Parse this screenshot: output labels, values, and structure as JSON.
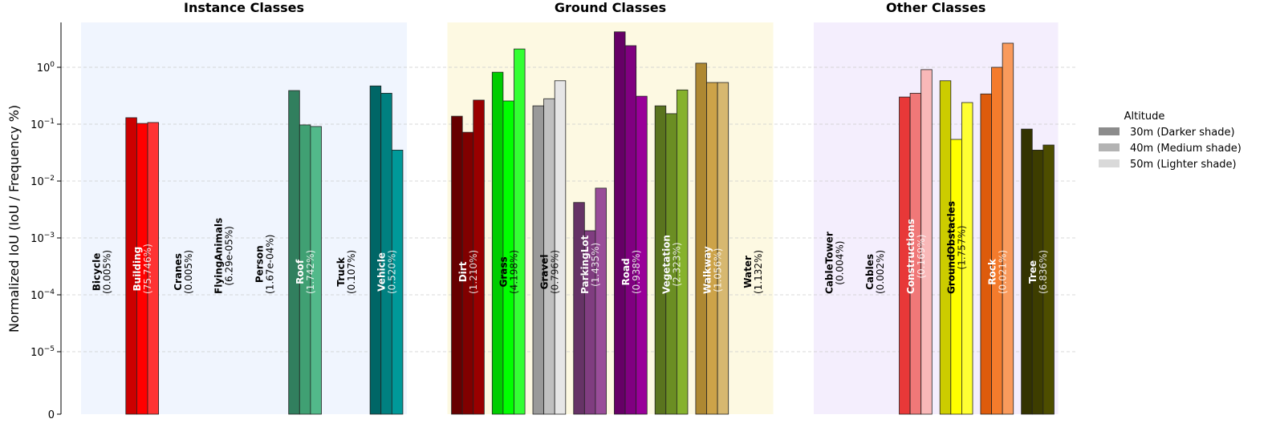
{
  "chart_data": {
    "type": "bar",
    "ylabel": "Normalized IoU (IoU / Frequency %)",
    "yscale": "symlog",
    "ylim": [
      0,
      6
    ],
    "yticks": [
      {
        "value": 0,
        "base": "0",
        "exp": ""
      },
      {
        "value": 1e-05,
        "base": "10",
        "exp": "−5"
      },
      {
        "value": 0.0001,
        "base": "10",
        "exp": "−4"
      },
      {
        "value": 0.001,
        "base": "10",
        "exp": "−3"
      },
      {
        "value": 0.01,
        "base": "10",
        "exp": "−2"
      },
      {
        "value": 0.1,
        "base": "10",
        "exp": "−1"
      },
      {
        "value": 1,
        "base": "10",
        "exp": "0"
      }
    ],
    "grid": true,
    "legend": {
      "title": "Altitude",
      "placement": "right",
      "entries": [
        {
          "label": "30m (Darker shade)",
          "color": "#8c8c8c"
        },
        {
          "label": "40m (Medium shade)",
          "color": "#b3b3b3"
        },
        {
          "label": "50m (Lighter shade)",
          "color": "#d9d9d9"
        }
      ]
    },
    "groups": [
      {
        "title": "Instance Classes",
        "background": "#f0f5fe",
        "classes": [
          {
            "name": "Bicycle",
            "freq": "(0.005%)",
            "values": [],
            "colors": []
          },
          {
            "name": "Building",
            "freq": "(75.746%)",
            "values": [
              0.13,
              0.103,
              0.107
            ],
            "colors": [
              "#cc0000",
              "#ff0000",
              "#ff3333"
            ]
          },
          {
            "name": "Cranes",
            "freq": "(0.005%)",
            "values": [],
            "colors": []
          },
          {
            "name": "FlyingAnimals",
            "freq": "(6.29e-05%)",
            "values": [],
            "colors": []
          },
          {
            "name": "Person",
            "freq": "(1.67e-04%)",
            "values": [],
            "colors": []
          },
          {
            "name": "Roof",
            "freq": "(1.742%)",
            "values": [
              0.39,
              0.097,
              0.091
            ],
            "colors": [
              "#317f5e",
              "#40a073",
              "#52b98a"
            ]
          },
          {
            "name": "Truck",
            "freq": "(0.107%)",
            "values": [],
            "colors": []
          },
          {
            "name": "Vehicle",
            "freq": "(0.520%)",
            "values": [
              0.47,
              0.35,
              0.035
            ],
            "colors": [
              "#006666",
              "#008080",
              "#009999"
            ]
          }
        ]
      },
      {
        "title": "Ground Classes",
        "background": "#fdf9e2",
        "classes": [
          {
            "name": "Dirt",
            "freq": "(1.210%)",
            "values": [
              0.138,
              0.072,
              0.265
            ],
            "colors": [
              "#660000",
              "#800000",
              "#990000"
            ]
          },
          {
            "name": "Grass",
            "freq": "(4.198%)",
            "values": [
              0.82,
              0.256,
              2.1
            ],
            "colors": [
              "#00cc00",
              "#00ff00",
              "#33ff33"
            ]
          },
          {
            "name": "Gravel",
            "freq": "(0.796%)",
            "values": [
              0.21,
              0.28,
              0.58
            ],
            "colors": [
              "#999999",
              "#c0c0c0",
              "#e6e6e6"
            ]
          },
          {
            "name": "ParkingLot",
            "freq": "(1.435%)",
            "values": [
              0.0042,
              0.00134,
              0.0075
            ],
            "colors": [
              "#663366",
              "#803d80",
              "#994d99"
            ]
          },
          {
            "name": "Road",
            "freq": "(0.938%)",
            "values": [
              4.2,
              2.4,
              0.31
            ],
            "colors": [
              "#660066",
              "#800080",
              "#990099"
            ]
          },
          {
            "name": "Vegetation",
            "freq": "(2.323%)",
            "values": [
              0.21,
              0.153,
              0.4
            ],
            "colors": [
              "#5a741e",
              "#6b8e23",
              "#86b22c"
            ]
          },
          {
            "name": "Walkway",
            "freq": "(1.056%)",
            "values": [
              1.18,
              0.54,
              0.54
            ],
            "colors": [
              "#ae8832",
              "#cda349",
              "#d7b870"
            ]
          },
          {
            "name": "Water",
            "freq": "(1.132%)",
            "values": [],
            "colors": []
          }
        ]
      },
      {
        "title": "Other Classes",
        "background": "#f4eefd",
        "classes": [
          {
            "name": "CableTower",
            "freq": "(0.004%)",
            "values": [],
            "colors": []
          },
          {
            "name": "Cables",
            "freq": "(0.002%)",
            "values": [],
            "colors": []
          },
          {
            "name": "Constructions",
            "freq": "(0.169%)",
            "values": [
              0.3,
              0.35,
              0.91
            ],
            "colors": [
              "#e83838",
              "#f07878",
              "#f9b8b8"
            ]
          },
          {
            "name": "GroundObstacles",
            "freq": "(1.757%)",
            "values": [
              0.58,
              0.054,
              0.24
            ],
            "colors": [
              "#cccc00",
              "#ffff00",
              "#ffff33"
            ]
          },
          {
            "name": "Rock",
            "freq": "(0.021%)",
            "values": [
              0.34,
              1.0,
              2.65
            ],
            "colors": [
              "#dd5b0c",
              "#f47b2c",
              "#f99a5c"
            ]
          },
          {
            "name": "Tree",
            "freq": "(6.836%)",
            "values": [
              0.082,
              0.035,
              0.043
            ],
            "colors": [
              "#333300",
              "#3d3d00",
              "#4d4d00"
            ]
          }
        ]
      }
    ],
    "dark_label_classes": [
      "Grass",
      "Gravel",
      "GroundObstacles"
    ]
  }
}
